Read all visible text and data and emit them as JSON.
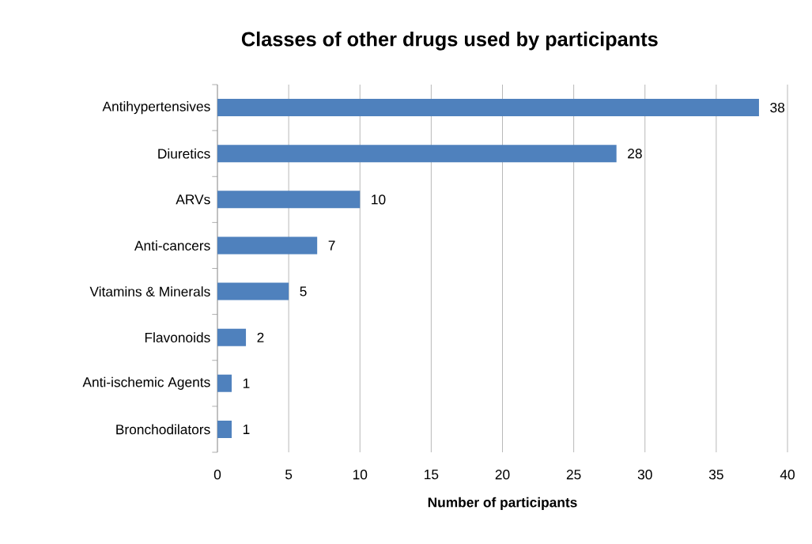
{
  "chart_data": {
    "type": "bar",
    "orientation": "horizontal",
    "title": "Classes of other drugs used by  participants",
    "xlabel": "Number of participants",
    "categories": [
      "Antihypertensives",
      "Diuretics",
      "ARVs",
      "Anti-cancers",
      "Vitamins & Minerals",
      "Flavonoids",
      "Anti-ischemic Agents",
      "Bronchodilators"
    ],
    "values": [
      38,
      28,
      10,
      7,
      5,
      2,
      1,
      1
    ],
    "color": "#4f81bd",
    "xlim": [
      0,
      40
    ],
    "xticks": [
      0,
      5,
      10,
      15,
      20,
      25,
      30,
      35,
      40
    ],
    "grid": "x",
    "data_labels": true
  }
}
